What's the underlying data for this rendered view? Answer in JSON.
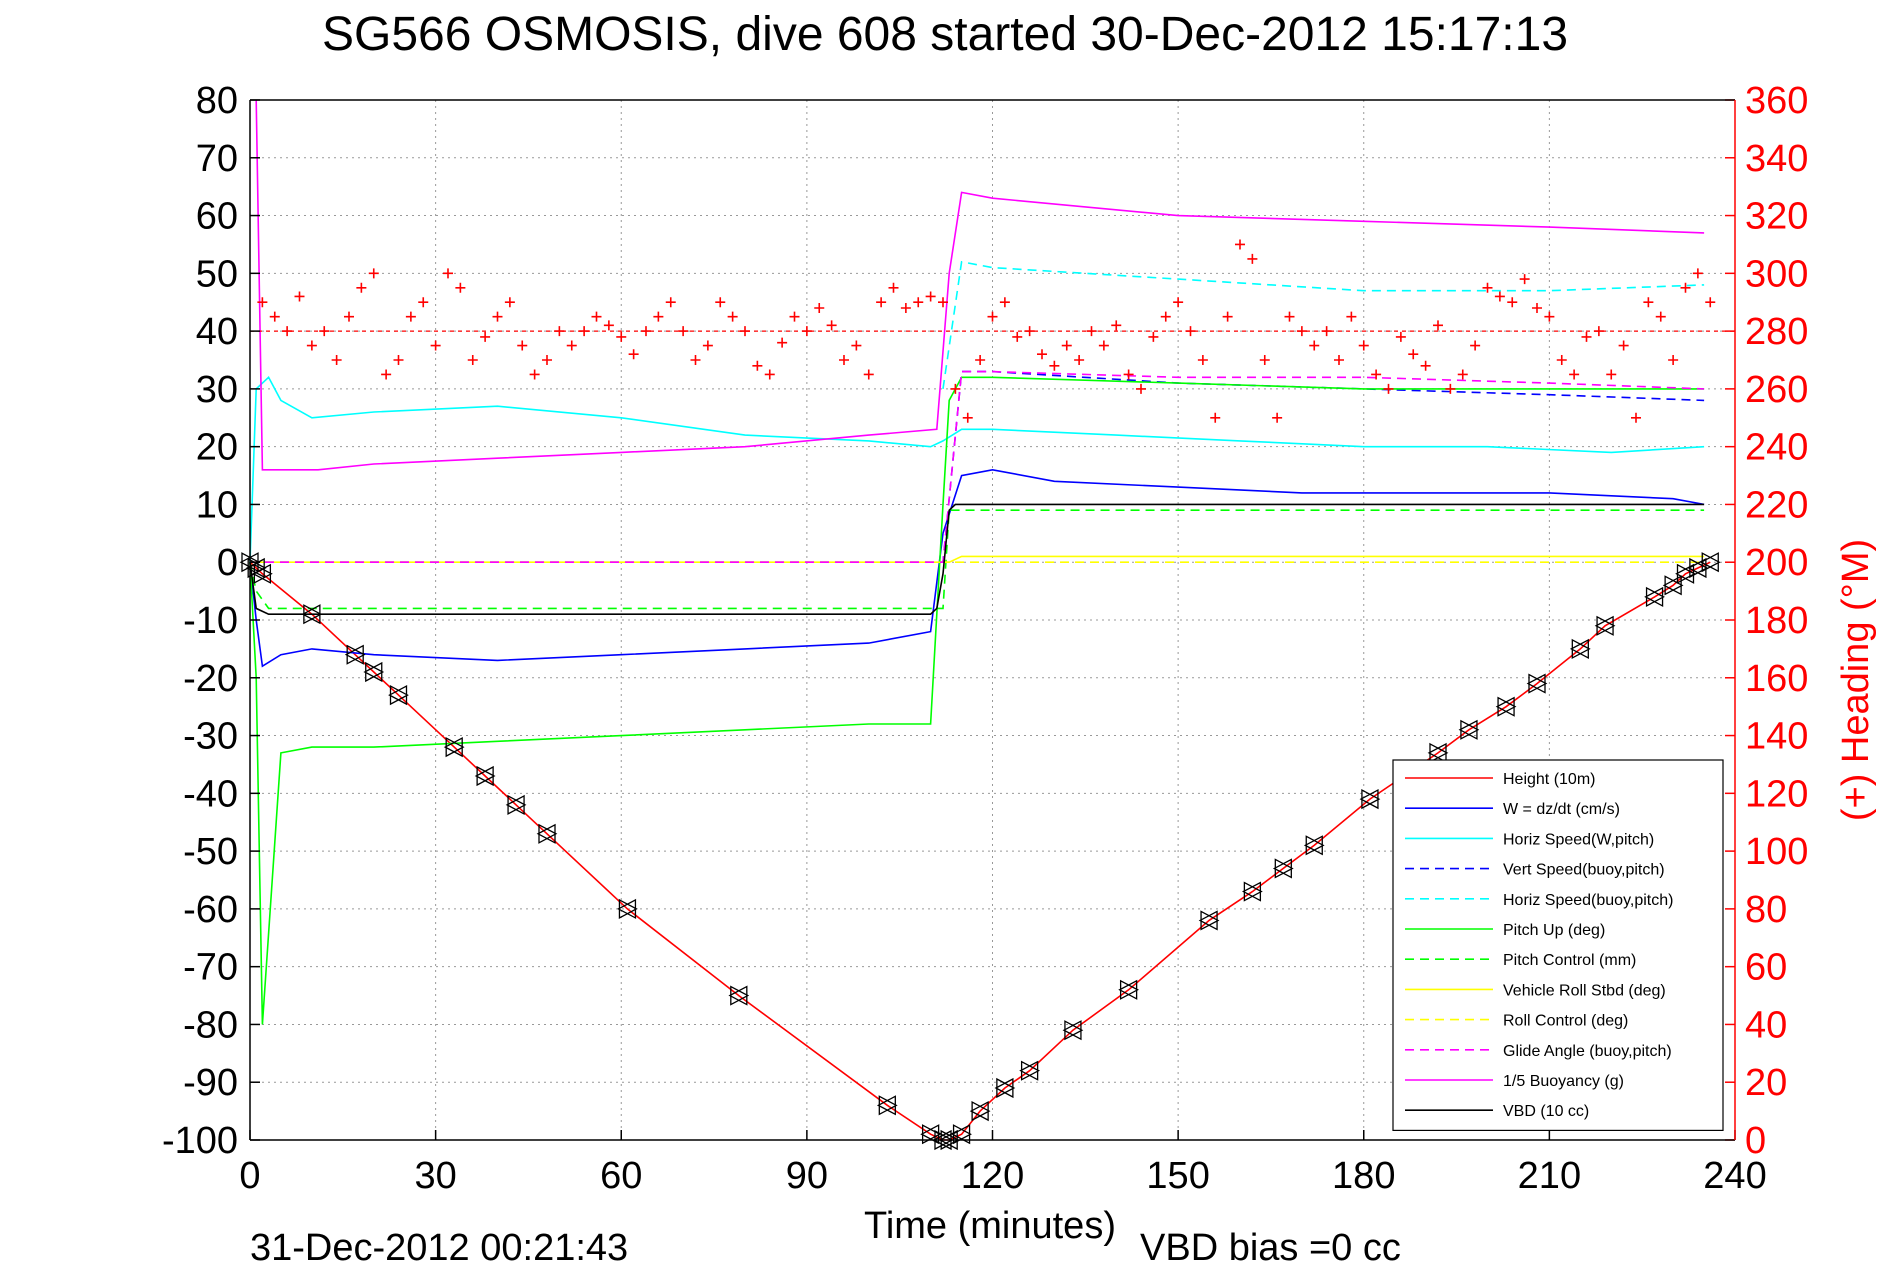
{
  "chart_data": {
    "type": "line",
    "title": "SG566 OSMOSIS, dive 608 started 30-Dec-2012 15:17:13",
    "xlabel": "Time (minutes)",
    "ylabel": "",
    "ylabel_right": "(+) Heading (°M)",
    "xlim": [
      0,
      240
    ],
    "ylim": [
      -100,
      80
    ],
    "ylim_right": [
      0,
      360
    ],
    "xticks": [
      "0",
      "30",
      "60",
      "90",
      "120",
      "150",
      "180",
      "210",
      "240"
    ],
    "yticks": [
      "80",
      "70",
      "60",
      "50",
      "40",
      "30",
      "20",
      "10",
      "0",
      "-10",
      "-20",
      "-30",
      "-40",
      "-50",
      "-60",
      "-70",
      "-80",
      "-90",
      "-100"
    ],
    "yticks_right": [
      "360",
      "340",
      "320",
      "300",
      "280",
      "260",
      "240",
      "220",
      "200",
      "180",
      "160",
      "140",
      "120",
      "100",
      "80",
      "60",
      "40",
      "20",
      "0"
    ],
    "grid": true,
    "legend_position": "bottom-right",
    "footer_left": "31-Dec-2012 00:21:43",
    "footer_right": "VBD bias =0 cc",
    "colors": {
      "height": "#ff0000",
      "w": "#0000ff",
      "horiz_speed": "#00ffff",
      "pitch": "#00ff00",
      "roll": "#ffff00",
      "buoyancy": "#ff00ff",
      "vbd": "#000000",
      "heading": "#ff0000",
      "right_axis": "#ff0000"
    },
    "series": [
      {
        "name": "Height (10m)",
        "style": "solid",
        "color": "#ff0000",
        "x": [
          0,
          1,
          2,
          10,
          17,
          20,
          24,
          33,
          38,
          43,
          48,
          61,
          79,
          103,
          110,
          112,
          113,
          115,
          118,
          122,
          126,
          133,
          142,
          155,
          162,
          167,
          172,
          181,
          192,
          197,
          203,
          208,
          215,
          219,
          227,
          230,
          232,
          234,
          236
        ],
        "y": [
          0,
          -1,
          -2,
          -9,
          -16,
          -19,
          -23,
          -32,
          -37,
          -42,
          -47,
          -60,
          -75,
          -94,
          -99,
          -100,
          -100,
          -99,
          -95,
          -91,
          -88,
          -81,
          -74,
          -62,
          -57,
          -53,
          -49,
          -41,
          -33,
          -29,
          -25,
          -21,
          -15,
          -11,
          -6,
          -4,
          -2,
          -1,
          0
        ]
      },
      {
        "name": "W = dz/dt (cm/s)",
        "style": "solid",
        "color": "#0000ff",
        "x": [
          0,
          1,
          2,
          5,
          10,
          20,
          40,
          60,
          80,
          100,
          110,
          112,
          115,
          120,
          130,
          150,
          170,
          190,
          210,
          230,
          235
        ],
        "y": [
          0,
          -10,
          -18,
          -16,
          -15,
          -16,
          -17,
          -16,
          -15,
          -14,
          -12,
          5,
          15,
          16,
          14,
          13,
          12,
          12,
          12,
          11,
          10
        ]
      },
      {
        "name": "Horiz Speed(W,pitch)",
        "style": "solid",
        "color": "#00ffff",
        "x": [
          0,
          1,
          3,
          5,
          10,
          20,
          40,
          60,
          80,
          100,
          110,
          112,
          115,
          120,
          140,
          160,
          180,
          200,
          220,
          235
        ],
        "y": [
          0,
          30,
          32,
          28,
          25,
          26,
          27,
          25,
          22,
          21,
          20,
          21,
          23,
          23,
          22,
          21,
          20,
          20,
          19,
          20
        ]
      },
      {
        "name": "Vert Speed(buoy,pitch)",
        "style": "dashed",
        "color": "#0000ff",
        "x": [
          0,
          112,
          115,
          120,
          150,
          180,
          210,
          235
        ],
        "y": [
          0,
          0,
          33,
          33,
          31,
          30,
          29,
          28
        ]
      },
      {
        "name": "Horiz Speed(buoy,pitch)",
        "style": "dashed",
        "color": "#00ffff",
        "x": [
          112,
          115,
          120,
          150,
          180,
          210,
          235
        ],
        "y": [
          30,
          52,
          51,
          49,
          47,
          47,
          48
        ]
      },
      {
        "name": "Pitch Up (deg)",
        "style": "solid",
        "color": "#00ff00",
        "x": [
          0,
          1,
          2,
          5,
          10,
          20,
          40,
          60,
          80,
          100,
          110,
          112,
          113,
          115,
          120,
          150,
          180,
          210,
          235
        ],
        "y": [
          0,
          -20,
          -80,
          -33,
          -32,
          -32,
          -31,
          -30,
          -29,
          -28,
          -28,
          10,
          28,
          32,
          32,
          31,
          30,
          30,
          30
        ]
      },
      {
        "name": "Pitch Control (mm)",
        "style": "dashed",
        "color": "#00ff00",
        "x": [
          0,
          1,
          3,
          110,
          112,
          113,
          235
        ],
        "y": [
          0,
          -5,
          -8,
          -8,
          -8,
          9,
          9
        ]
      },
      {
        "name": "Vehicle Roll Stbd (deg)",
        "style": "solid",
        "color": "#ffff00",
        "x": [
          0,
          10,
          50,
          100,
          110,
          112,
          113,
          115,
          150,
          200,
          235
        ],
        "y": [
          0,
          0,
          0,
          0,
          0,
          0,
          0,
          1,
          1,
          1,
          1
        ]
      },
      {
        "name": "Roll Control (deg)",
        "style": "dashed",
        "color": "#ffff00",
        "x": [
          0,
          235
        ],
        "y": [
          0,
          0
        ]
      },
      {
        "name": "Glide Angle (buoy,pitch)",
        "style": "dashed",
        "color": "#ff00ff",
        "x": [
          0,
          112,
          115,
          120,
          150,
          180,
          210,
          235
        ],
        "y": [
          0,
          0,
          33,
          33,
          32,
          32,
          31,
          30
        ]
      },
      {
        "name": "1/5 Buoyancy (g)",
        "style": "solid",
        "color": "#ff00ff",
        "x": [
          1,
          2,
          5,
          11,
          20,
          40,
          60,
          80,
          100,
          111,
          113,
          115,
          120,
          150,
          180,
          210,
          235
        ],
        "y": [
          80,
          16,
          16,
          16,
          17,
          18,
          19,
          20,
          22,
          23,
          50,
          64,
          63,
          60,
          59,
          58,
          57
        ]
      },
      {
        "name": "VBD (10 cc)",
        "style": "solid",
        "color": "#000000",
        "x": [
          0,
          1,
          3,
          110,
          111,
          112,
          113,
          114,
          235
        ],
        "y": [
          0,
          -8,
          -9,
          -9,
          -8,
          -2,
          9,
          10,
          10
        ]
      }
    ],
    "heading_series": {
      "name": "(+) Heading (°M)",
      "axis": "right",
      "marker": "+",
      "color": "#ff0000",
      "x": [
        2,
        4,
        6,
        8,
        10,
        12,
        14,
        16,
        18,
        20,
        22,
        24,
        26,
        28,
        30,
        32,
        34,
        36,
        38,
        40,
        42,
        44,
        46,
        48,
        50,
        52,
        54,
        56,
        58,
        60,
        62,
        64,
        66,
        68,
        70,
        72,
        74,
        76,
        78,
        80,
        82,
        84,
        86,
        88,
        90,
        92,
        94,
        96,
        98,
        100,
        102,
        104,
        106,
        108,
        110,
        112,
        114,
        116,
        118,
        120,
        122,
        124,
        126,
        128,
        130,
        132,
        134,
        136,
        138,
        140,
        142,
        144,
        146,
        148,
        150,
        152,
        154,
        156,
        158,
        160,
        162,
        164,
        166,
        168,
        170,
        172,
        174,
        176,
        178,
        180,
        182,
        184,
        186,
        188,
        190,
        192,
        194,
        196,
        198,
        200,
        202,
        204,
        206,
        208,
        210,
        212,
        214,
        216,
        218,
        220,
        222,
        224,
        226,
        228,
        230,
        232,
        234,
        236
      ],
      "y": [
        290,
        285,
        280,
        292,
        275,
        280,
        270,
        285,
        295,
        300,
        265,
        270,
        285,
        290,
        275,
        300,
        295,
        270,
        278,
        285,
        290,
        275,
        265,
        270,
        280,
        275,
        280,
        285,
        282,
        278,
        272,
        280,
        285,
        290,
        280,
        270,
        275,
        290,
        285,
        280,
        268,
        265,
        276,
        285,
        280,
        288,
        282,
        270,
        275,
        265,
        290,
        295,
        288,
        290,
        292,
        290,
        260,
        250,
        270,
        285,
        290,
        278,
        280,
        272,
        268,
        275,
        270,
        280,
        275,
        282,
        265,
        260,
        278,
        285,
        290,
        280,
        270,
        250,
        285,
        310,
        305,
        270,
        250,
        285,
        280,
        275,
        280,
        270,
        285,
        275,
        265,
        260,
        278,
        272,
        268,
        282,
        260,
        265,
        275,
        295,
        292,
        290,
        298,
        288,
        285,
        270,
        265,
        278,
        280,
        265,
        275,
        250,
        290,
        285,
        270,
        295,
        300,
        290
      ]
    }
  }
}
